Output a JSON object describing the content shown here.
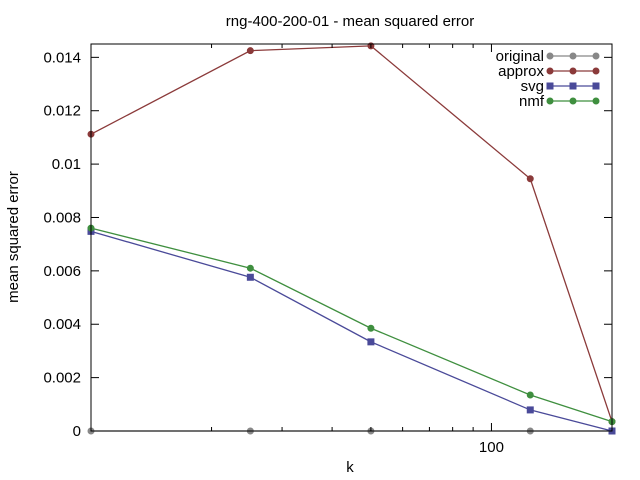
{
  "chart_data": {
    "type": "line",
    "title": "rng-400-200-01 - mean squared error",
    "xlabel": "k",
    "ylabel": "mean squared error",
    "x_scale": "log",
    "xlim": [
      10,
      200
    ],
    "ylim": [
      0,
      0.0145
    ],
    "x_tick_labels": [
      {
        "value": 100,
        "label": "100"
      }
    ],
    "y_tick_labels": [
      {
        "value": 0,
        "label": "0"
      },
      {
        "value": 0.002,
        "label": "0.002"
      },
      {
        "value": 0.004,
        "label": "0.004"
      },
      {
        "value": 0.006,
        "label": "0.006"
      },
      {
        "value": 0.008,
        "label": "0.008"
      },
      {
        "value": 0.01,
        "label": "0.01"
      },
      {
        "value": 0.012,
        "label": "0.012"
      },
      {
        "value": 0.014,
        "label": "0.014"
      }
    ],
    "grid": false,
    "legend_position": "top-right",
    "x": [
      10,
      25,
      50,
      125,
      200
    ],
    "series": [
      {
        "name": "original",
        "color": "#888888",
        "marker": "circle",
        "values": [
          0,
          0,
          0,
          0,
          0
        ]
      },
      {
        "name": "approx",
        "color": "#8b3a3a",
        "marker": "circle",
        "values": [
          0.01112,
          0.01425,
          0.01443,
          0.00945,
          0.00035
        ]
      },
      {
        "name": "svg",
        "color": "#4a4a99",
        "marker": "square",
        "values": [
          0.00748,
          0.00576,
          0.00334,
          0.00079,
          0.0
        ]
      },
      {
        "name": "nmf",
        "color": "#3f8f3f",
        "marker": "circle",
        "values": [
          0.0076,
          0.0061,
          0.00385,
          0.00135,
          0.00035
        ]
      }
    ]
  }
}
